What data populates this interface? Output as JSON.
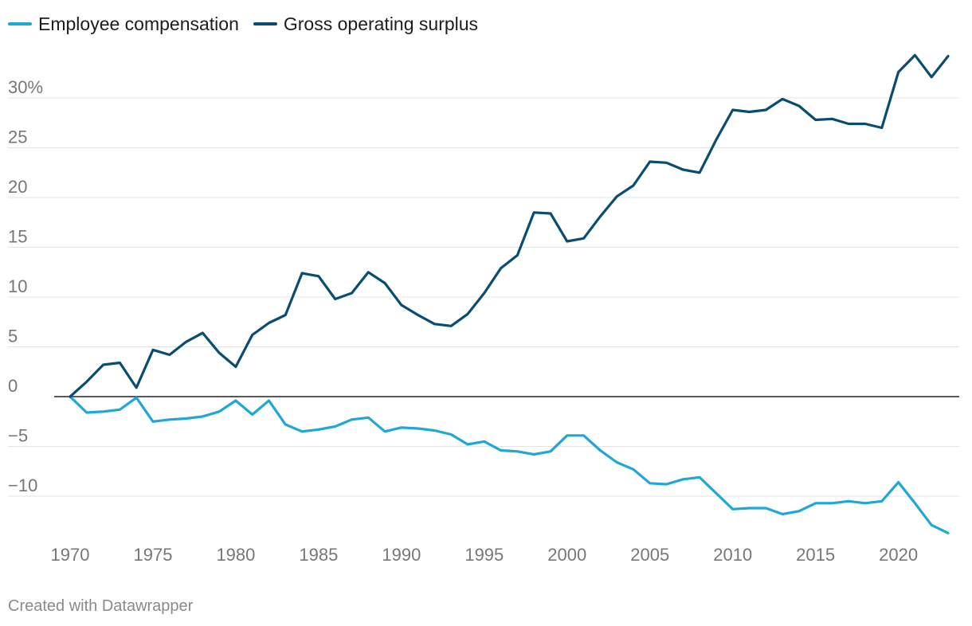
{
  "legend": {
    "items": [
      {
        "label": "Employee compensation",
        "color": "#1ea7d8"
      },
      {
        "label": "Gross operating surplus",
        "color": "#0a4d72"
      }
    ]
  },
  "footer": {
    "text": "Created with Datawrapper"
  },
  "chart_data": {
    "type": "line",
    "title": "",
    "xlabel": "",
    "ylabel": "",
    "x_range": [
      1970,
      2023
    ],
    "y_range": [
      -13.7,
      34.5
    ],
    "x_ticks": [
      1970,
      1975,
      1980,
      1985,
      1990,
      1995,
      2000,
      2005,
      2010,
      2015,
      2020
    ],
    "y_ticks": [
      {
        "value": 30,
        "label": "30%"
      },
      {
        "value": 25,
        "label": "25"
      },
      {
        "value": 20,
        "label": "20"
      },
      {
        "value": 15,
        "label": "15"
      },
      {
        "value": 10,
        "label": "10"
      },
      {
        "value": 5,
        "label": "5"
      },
      {
        "value": 0,
        "label": "0"
      },
      {
        "value": -5,
        "label": "−5"
      },
      {
        "value": -10,
        "label": "−10"
      }
    ],
    "grid": true,
    "legend_position": "top-left",
    "x": [
      1970,
      1971,
      1972,
      1973,
      1974,
      1975,
      1976,
      1977,
      1978,
      1979,
      1980,
      1981,
      1982,
      1983,
      1984,
      1985,
      1986,
      1987,
      1988,
      1989,
      1990,
      1991,
      1992,
      1993,
      1994,
      1995,
      1996,
      1997,
      1998,
      1999,
      2000,
      2001,
      2002,
      2003,
      2004,
      2005,
      2006,
      2007,
      2008,
      2009,
      2010,
      2011,
      2012,
      2013,
      2014,
      2015,
      2016,
      2017,
      2018,
      2019,
      2020,
      2021,
      2022,
      2023
    ],
    "series": [
      {
        "name": "Employee compensation",
        "color": "#1ea7d8",
        "values": [
          0,
          -1.6,
          -1.5,
          -1.3,
          -0.1,
          -2.5,
          -2.3,
          -2.2,
          -2.0,
          -1.5,
          -0.4,
          -1.8,
          -0.4,
          -2.8,
          -3.5,
          -3.3,
          -3.0,
          -2.3,
          -2.1,
          -3.5,
          -3.1,
          -3.2,
          -3.4,
          -3.8,
          -4.8,
          -4.5,
          -5.4,
          -5.5,
          -5.8,
          -5.5,
          -3.9,
          -3.9,
          -5.4,
          -6.6,
          -7.3,
          -8.7,
          -8.8,
          -8.3,
          -8.1,
          -9.7,
          -11.3,
          -11.2,
          -11.2,
          -11.8,
          -11.5,
          -10.7,
          -10.7,
          -10.5,
          -10.7,
          -10.5,
          -8.6,
          -10.7,
          -12.9,
          -13.7
        ]
      },
      {
        "name": "Gross operating surplus",
        "color": "#0a4d72",
        "values": [
          0,
          1.5,
          3.2,
          3.4,
          0.9,
          4.7,
          4.2,
          5.5,
          6.4,
          4.4,
          3.0,
          6.2,
          7.4,
          8.2,
          12.4,
          12.1,
          9.8,
          10.4,
          12.5,
          11.4,
          9.2,
          8.2,
          7.3,
          7.1,
          8.3,
          10.4,
          12.9,
          14.2,
          18.5,
          18.4,
          15.6,
          15.9,
          18.1,
          20.1,
          21.2,
          23.6,
          23.5,
          22.8,
          22.5,
          25.8,
          28.8,
          28.6,
          28.8,
          29.9,
          29.2,
          27.8,
          27.9,
          27.4,
          27.4,
          27.0,
          32.6,
          34.3,
          32.1,
          34.2
        ]
      }
    ]
  }
}
